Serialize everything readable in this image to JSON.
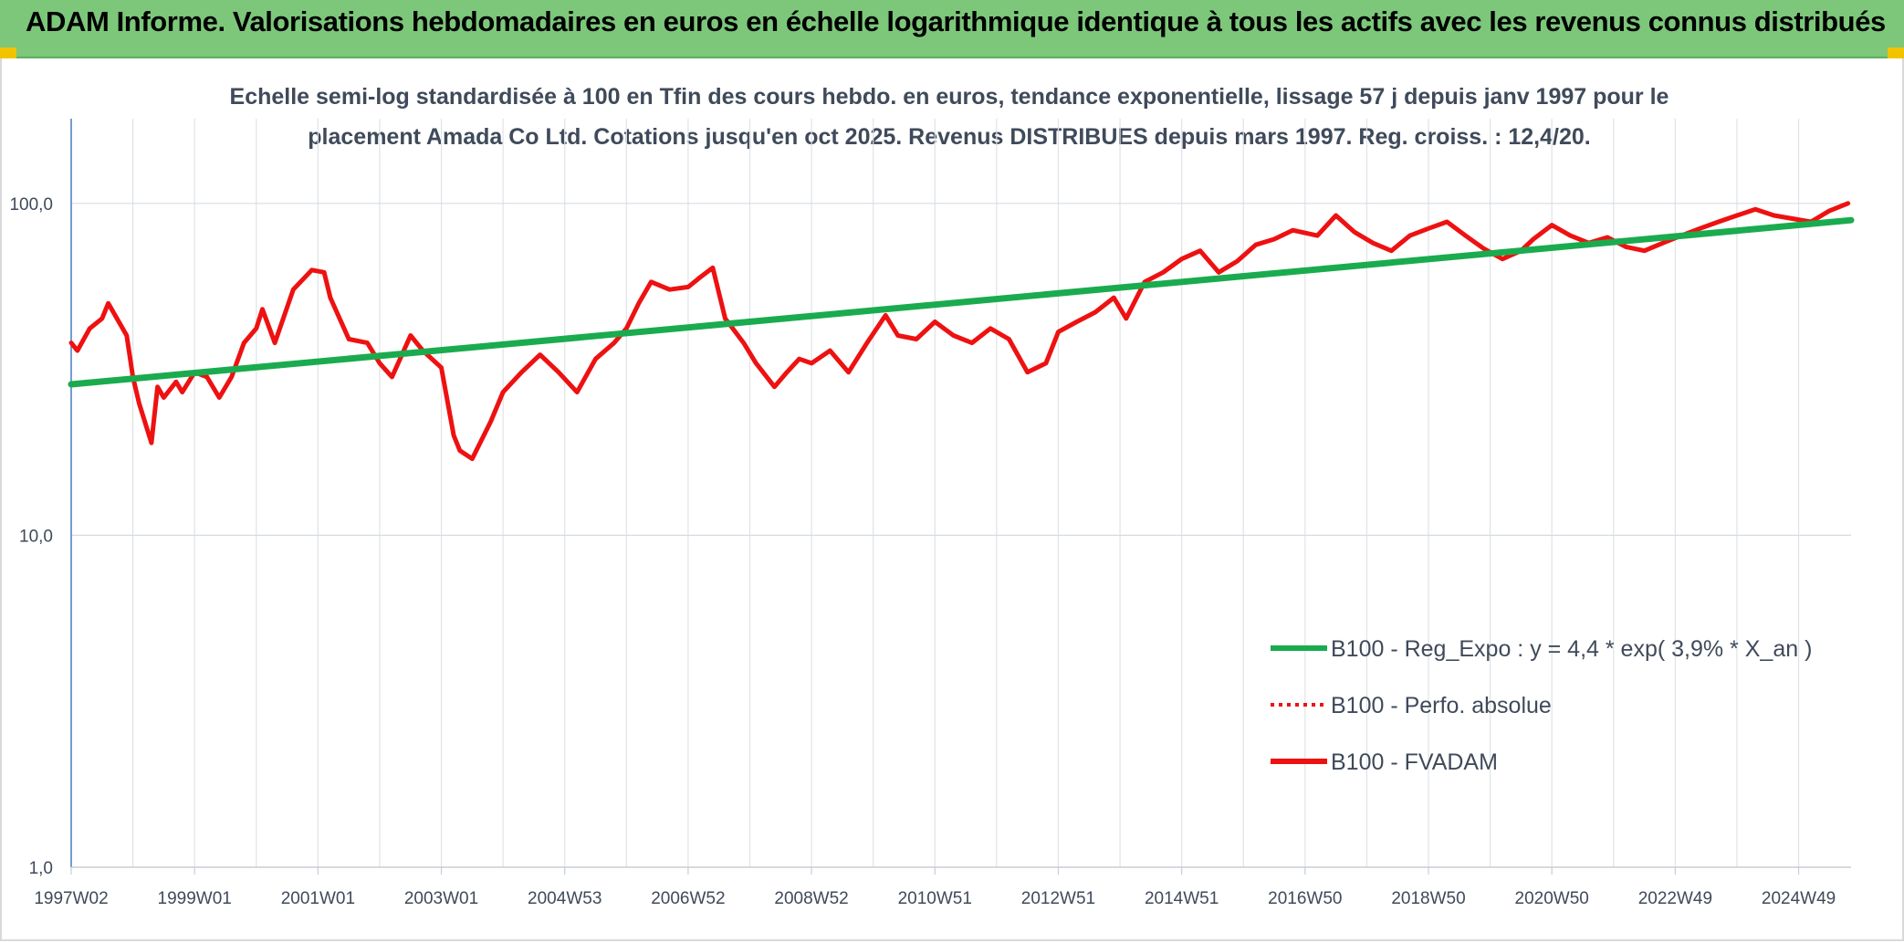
{
  "header": {
    "title": "ADAM Informe. Valorisations hebdomadaires en euros en échelle logarithmique identique à tous les actifs avec les revenus connus distribués",
    "background": "#7cc77a"
  },
  "chart_data": {
    "type": "line",
    "title_line1": "Echelle semi-log standardisée à 100 en Tfin des cours hebdo. en euros, tendance exponentielle, lissage 57 j depuis janv 1997 pour le",
    "title_line2": "placement Amada Co Ltd. Cotations jusqu'en oct 2025. Revenus DISTRIBUES depuis mars 1997. Reg. croiss. : 12,4/20.",
    "y_scale": "log",
    "ylim": [
      1,
      180
    ],
    "xlim": [
      1997.0,
      2025.85
    ],
    "y_ticks": [
      {
        "value": 100,
        "label": "100,0"
      },
      {
        "value": 10,
        "label": "10,0"
      },
      {
        "value": 1,
        "label": "1,0"
      }
    ],
    "x_ticks": [
      {
        "value": 1997.0,
        "label": "1997W02"
      },
      {
        "value": 1999.0,
        "label": "1999W01"
      },
      {
        "value": 2001.0,
        "label": "2001W01"
      },
      {
        "value": 2003.0,
        "label": "2003W01"
      },
      {
        "value": 2005.0,
        "label": "2004W53"
      },
      {
        "value": 2007.0,
        "label": "2006W52"
      },
      {
        "value": 2009.0,
        "label": "2008W52"
      },
      {
        "value": 2011.0,
        "label": "2010W51"
      },
      {
        "value": 2013.0,
        "label": "2012W51"
      },
      {
        "value": 2015.0,
        "label": "2014W51"
      },
      {
        "value": 2017.0,
        "label": "2016W50"
      },
      {
        "value": 2019.0,
        "label": "2018W50"
      },
      {
        "value": 2021.0,
        "label": "2020W50"
      },
      {
        "value": 2023.0,
        "label": "2022W49"
      },
      {
        "value": 2025.0,
        "label": "2024W49"
      }
    ],
    "grid": true,
    "legend_position": "bottom-right",
    "series": [
      {
        "name": "B100 - Reg_Expo : y = 4,4 * exp( 3,9% *  X_an )",
        "color": "#1aab4f",
        "style": "solid",
        "x": [
          1997.0,
          2025.85
        ],
        "y": [
          28.5,
          89
        ]
      },
      {
        "name": "B100 - Perfo. absolue",
        "color": "#ee1111",
        "style": "dotted",
        "x": [],
        "y": []
      },
      {
        "name": "B100 - FVADAM",
        "color": "#ee1111",
        "style": "solid",
        "x": [
          1997.0,
          1997.1,
          1997.3,
          1997.5,
          1997.6,
          1997.9,
          1998.0,
          1998.1,
          1998.3,
          1998.4,
          1998.5,
          1998.7,
          1998.8,
          1999.0,
          1999.2,
          1999.4,
          1999.6,
          1999.8,
          2000.0,
          2000.1,
          2000.3,
          2000.6,
          2000.9,
          2001.1,
          2001.2,
          2001.5,
          2001.8,
          2002.0,
          2002.2,
          2002.5,
          2002.7,
          2003.0,
          2003.2,
          2003.3,
          2003.5,
          2003.8,
          2004.0,
          2004.3,
          2004.6,
          2004.9,
          2005.2,
          2005.5,
          2005.8,
          2006.0,
          2006.2,
          2006.4,
          2006.7,
          2007.0,
          2007.2,
          2007.4,
          2007.6,
          2007.9,
          2008.1,
          2008.4,
          2008.6,
          2008.8,
          2009.0,
          2009.3,
          2009.6,
          2009.9,
          2010.2,
          2010.4,
          2010.7,
          2011.0,
          2011.3,
          2011.6,
          2011.9,
          2012.2,
          2012.5,
          2012.8,
          2013.0,
          2013.3,
          2013.6,
          2013.9,
          2014.1,
          2014.4,
          2014.7,
          2015.0,
          2015.3,
          2015.6,
          2015.9,
          2016.2,
          2016.5,
          2016.8,
          2017.2,
          2017.5,
          2017.8,
          2018.1,
          2018.4,
          2018.7,
          2019.0,
          2019.3,
          2019.6,
          2019.9,
          2020.2,
          2020.5,
          2020.7,
          2021.0,
          2021.3,
          2021.6,
          2021.9,
          2022.2,
          2022.5,
          2022.8,
          2023.1,
          2023.4,
          2023.7,
          2024.0,
          2024.3,
          2024.6,
          2024.9,
          2025.2,
          2025.5,
          2025.8
        ],
        "y": [
          38,
          36,
          42,
          45,
          50,
          40,
          30,
          25,
          19,
          28,
          26,
          29,
          27,
          31,
          30,
          26,
          30,
          38,
          42,
          48,
          38,
          55,
          63,
          62,
          52,
          39,
          38,
          33,
          30,
          40,
          36,
          32,
          20,
          18,
          17,
          22,
          27,
          31,
          35,
          31,
          27,
          34,
          38,
          42,
          50,
          58,
          55,
          56,
          60,
          64,
          45,
          38,
          33,
          28,
          31,
          34,
          33,
          36,
          31,
          38,
          46,
          40,
          39,
          44,
          40,
          38,
          42,
          39,
          31,
          33,
          41,
          44,
          47,
          52,
          45,
          58,
          62,
          68,
          72,
          62,
          67,
          75,
          78,
          83,
          80,
          92,
          82,
          76,
          72,
          80,
          84,
          88,
          80,
          73,
          68,
          72,
          78,
          86,
          80,
          76,
          79,
          74,
          72,
          76,
          80,
          84,
          88,
          92,
          96,
          92,
          90,
          88,
          95,
          100
        ]
      }
    ]
  }
}
